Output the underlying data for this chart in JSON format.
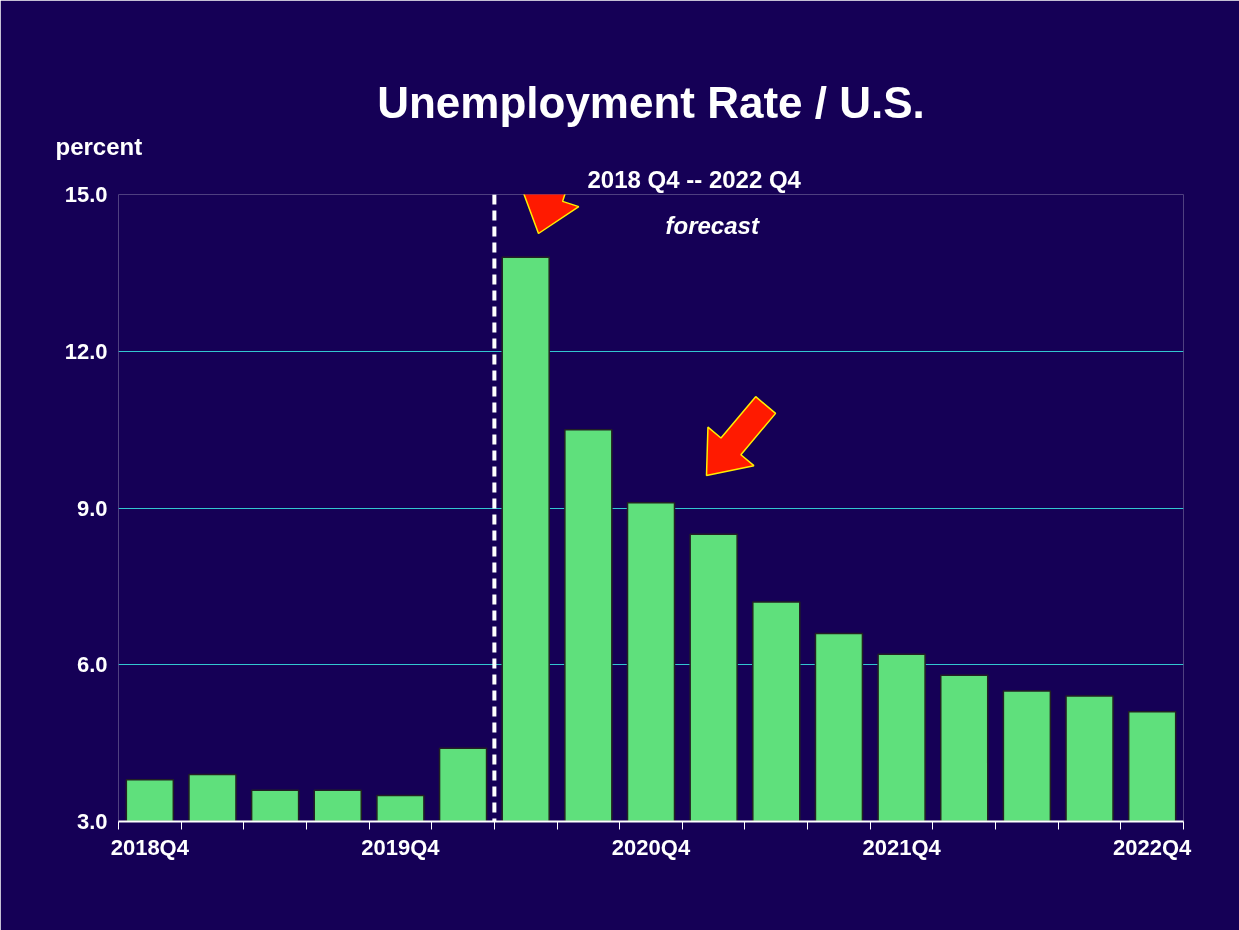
{
  "chart_data": {
    "type": "bar",
    "title": "Unemployment Rate / U.S.",
    "subtitle": "2018 Q4 -- 2022 Q4",
    "ylabel": "percent",
    "annotations": [
      "forecast"
    ],
    "categories": [
      "2018Q4",
      null,
      null,
      null,
      "2019Q4",
      null,
      null,
      null,
      "2020Q4",
      null,
      null,
      null,
      "2021Q4",
      null,
      null,
      null,
      "2022Q4"
    ],
    "values": [
      3.8,
      3.9,
      3.6,
      3.6,
      3.5,
      4.4,
      13.8,
      10.5,
      9.1,
      8.5,
      7.2,
      6.6,
      6.2,
      5.8,
      5.5,
      5.4,
      5.1
    ],
    "color": "#5fe07c",
    "ylim": [
      3,
      15
    ],
    "yticks": [
      {
        "value": 3,
        "label": "3.0"
      },
      {
        "value": 6,
        "label": "6.0"
      },
      {
        "value": 9,
        "label": "9.0"
      },
      {
        "value": 12,
        "label": "12.0"
      },
      {
        "value": 15,
        "label": "15.0"
      }
    ],
    "grid": "y"
  }
}
